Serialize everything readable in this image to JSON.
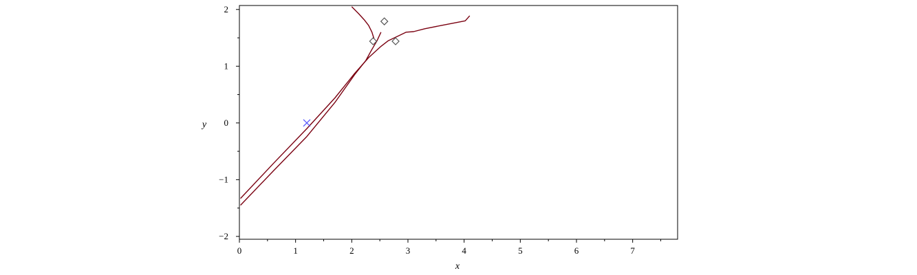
{
  "chart_data": {
    "type": "line",
    "title": "",
    "xlabel": "x",
    "ylabel": "y",
    "xlim": [
      0,
      7.8
    ],
    "ylim": [
      -2.05,
      2.07
    ],
    "x_ticks": [
      0,
      1,
      2,
      3,
      4,
      5,
      6,
      7
    ],
    "y_ticks": [
      -2,
      -1,
      0,
      1,
      2
    ],
    "x_tick_labels": [
      "0",
      "1",
      "2",
      "3",
      "4",
      "5",
      "6",
      "7"
    ],
    "y_tick_labels": [
      "−2",
      "−1",
      "0",
      "1",
      "2"
    ],
    "grid": false,
    "legend": "none",
    "colors": {
      "curve": "#7a0010",
      "cross_marker": "#5b5bff",
      "diamond_marker": "#555555",
      "axis": "#000000"
    },
    "series": [
      {
        "style": "line",
        "points": [
          [
            0.02,
            -1.45
          ],
          [
            0.6,
            -0.85
          ],
          [
            1.2,
            -0.24
          ],
          [
            1.7,
            0.36
          ],
          [
            2.05,
            0.85
          ],
          [
            2.25,
            1.1
          ],
          [
            2.35,
            1.28
          ],
          [
            2.45,
            1.45
          ],
          [
            2.52,
            1.6
          ]
        ]
      },
      {
        "style": "line",
        "points": [
          [
            0.02,
            -1.33
          ],
          [
            0.6,
            -0.72
          ],
          [
            1.2,
            -0.1
          ],
          [
            1.7,
            0.44
          ],
          [
            2.05,
            0.87
          ],
          [
            2.3,
            1.15
          ],
          [
            2.52,
            1.35
          ],
          [
            2.65,
            1.45
          ],
          [
            2.8,
            1.52
          ],
          [
            2.97,
            1.6
          ],
          [
            3.1,
            1.61
          ],
          [
            3.3,
            1.66
          ],
          [
            3.6,
            1.72
          ],
          [
            4.02,
            1.8
          ],
          [
            4.1,
            1.89
          ]
        ]
      },
      {
        "style": "line",
        "points": [
          [
            2.0,
            2.05
          ],
          [
            2.12,
            1.93
          ],
          [
            2.22,
            1.82
          ],
          [
            2.3,
            1.72
          ],
          [
            2.36,
            1.6
          ],
          [
            2.4,
            1.47
          ],
          [
            2.38,
            1.38
          ]
        ]
      },
      {
        "style": "marker",
        "marker": "cross",
        "points": [
          [
            1.2,
            0.0
          ]
        ]
      },
      {
        "style": "marker",
        "marker": "diamond",
        "points": [
          [
            2.38,
            1.44
          ],
          [
            2.58,
            1.79
          ],
          [
            2.78,
            1.44
          ]
        ]
      }
    ]
  }
}
